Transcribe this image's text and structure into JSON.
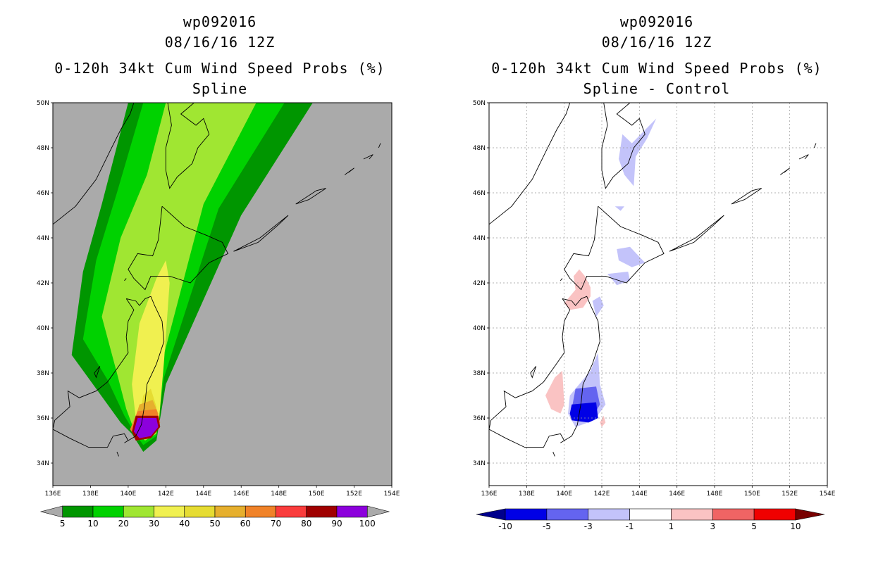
{
  "chart_data": [
    {
      "type": "heatmap",
      "panel": "left",
      "title_lines": [
        "wp092016",
        "08/16/16 12Z",
        "0-120h 34kt Cum Wind Speed Probs (%)",
        "Spline"
      ],
      "xlim": [
        136,
        154
      ],
      "ylim": [
        33,
        50
      ],
      "x_tick_labels": [
        "136E",
        "138E",
        "140E",
        "142E",
        "144E",
        "146E",
        "148E",
        "150E",
        "152E",
        "154E"
      ],
      "y_tick_labels": [
        "34N",
        "36N",
        "38N",
        "40N",
        "42N",
        "44N",
        "46N",
        "48N",
        "50N"
      ],
      "colorbar": {
        "levels": [
          "5",
          "10",
          "20",
          "30",
          "40",
          "50",
          "60",
          "70",
          "80",
          "90",
          "100"
        ],
        "colors": [
          "#009600",
          "#00d200",
          "#a0e632",
          "#f0f050",
          "#e6dc32",
          "#e6af2d",
          "#f08228",
          "#fa3c3c",
          "#a00000",
          "#8c00dc"
        ],
        "under_color": "#aaaaaa",
        "over_color": "#aaaaaa"
      },
      "background_color": "#aaaaaa",
      "bands": [
        {
          "level": "5-10",
          "color": "#009600",
          "polygon": [
            [
              137.0,
              38.8
            ],
            [
              137.6,
              42.5
            ],
            [
              138.6,
              45.5
            ],
            [
              140.0,
              50.0
            ],
            [
              149.8,
              50.0
            ],
            [
              146.0,
              45.0
            ],
            [
              142.0,
              37.5
            ],
            [
              141.5,
              35.0
            ],
            [
              140.8,
              34.5
            ],
            [
              140.2,
              35.3
            ],
            [
              139.6,
              35.8
            ],
            [
              138.3,
              37.3
            ]
          ]
        },
        {
          "level": "10-20",
          "color": "#00d200",
          "polygon": [
            [
              137.6,
              39.5
            ],
            [
              138.3,
              43.0
            ],
            [
              139.4,
              46.0
            ],
            [
              140.8,
              50.0
            ],
            [
              148.3,
              50.0
            ],
            [
              144.8,
              45.3
            ],
            [
              141.9,
              37.8
            ],
            [
              141.5,
              35.2
            ],
            [
              140.8,
              34.8
            ],
            [
              140.3,
              35.4
            ],
            [
              139.8,
              36.1
            ],
            [
              138.9,
              37.7
            ]
          ]
        },
        {
          "level": "20-30",
          "color": "#a0e632",
          "polygon": [
            [
              138.6,
              40.5
            ],
            [
              139.6,
              44.0
            ],
            [
              141.0,
              46.8
            ],
            [
              142.0,
              50.0
            ],
            [
              146.8,
              50.0
            ],
            [
              144.0,
              45.5
            ],
            [
              141.8,
              38.5
            ],
            [
              141.5,
              35.3
            ],
            [
              140.9,
              35.0
            ],
            [
              140.3,
              35.5
            ],
            [
              139.9,
              36.4
            ],
            [
              139.4,
              38.0
            ]
          ]
        },
        {
          "level": "30-40",
          "color": "#f0f050",
          "polygon": [
            [
              140.6,
              40.2
            ],
            [
              141.5,
              42.2
            ],
            [
              142.0,
              43.0
            ],
            [
              142.2,
              42.0
            ],
            [
              141.9,
              38.5
            ],
            [
              141.6,
              35.5
            ],
            [
              141.0,
              35.2
            ],
            [
              140.4,
              36.0
            ],
            [
              140.2,
              37.5
            ]
          ]
        },
        {
          "level": "40-50",
          "color": "#e6dc32",
          "polygon": [
            [
              140.8,
              37.0
            ],
            [
              141.2,
              37.3
            ],
            [
              141.5,
              36.5
            ],
            [
              141.4,
              35.6
            ],
            [
              140.9,
              35.4
            ],
            [
              140.6,
              36.0
            ]
          ]
        },
        {
          "level": "50-60",
          "color": "#e6af2d",
          "polygon": [
            [
              140.6,
              36.6
            ],
            [
              141.3,
              36.8
            ],
            [
              141.6,
              36.2
            ],
            [
              141.4,
              35.5
            ],
            [
              140.7,
              35.3
            ],
            [
              140.3,
              35.8
            ]
          ]
        },
        {
          "level": "60-70",
          "color": "#f08228",
          "polygon": [
            [
              140.5,
              36.3
            ],
            [
              141.5,
              36.4
            ],
            [
              141.7,
              35.8
            ],
            [
              141.2,
              35.2
            ],
            [
              140.5,
              35.0
            ],
            [
              140.1,
              35.5
            ]
          ]
        },
        {
          "level": "80-90",
          "color": "#a00000",
          "polygon": [
            [
              140.4,
              36.1
            ],
            [
              141.6,
              36.1
            ],
            [
              141.7,
              35.6
            ],
            [
              141.2,
              35.1
            ],
            [
              140.4,
              35.0
            ],
            [
              140.2,
              35.4
            ]
          ]
        },
        {
          "level": "90-100",
          "color": "#8c00dc",
          "polygon": [
            [
              140.5,
              36.0
            ],
            [
              141.5,
              36.0
            ],
            [
              141.6,
              35.6
            ],
            [
              141.2,
              35.2
            ],
            [
              140.6,
              35.1
            ],
            [
              140.3,
              35.4
            ]
          ]
        }
      ]
    },
    {
      "type": "heatmap",
      "panel": "right",
      "title_lines": [
        "wp092016",
        "08/16/16 12Z",
        "0-120h 34kt Cum Wind Speed Probs (%)",
        "Spline - Control"
      ],
      "xlim": [
        136,
        154
      ],
      "ylim": [
        33,
        50
      ],
      "x_tick_labels": [
        "136E",
        "138E",
        "140E",
        "142E",
        "144E",
        "146E",
        "148E",
        "150E",
        "152E",
        "154E"
      ],
      "y_tick_labels": [
        "34N",
        "36N",
        "38N",
        "40N",
        "42N",
        "44N",
        "46N",
        "48N",
        "50N"
      ],
      "colorbar": {
        "levels": [
          "-10",
          "-5",
          "-3",
          "-1",
          "1",
          "3",
          "5",
          "10"
        ],
        "colors": [
          "#0000e6",
          "#6464f0",
          "#c3c3fa",
          "#ffffff",
          "#fac3c3",
          "#f06464",
          "#f00000"
        ],
        "under_color": "#00008c",
        "over_color": "#780000"
      },
      "background_color": "#ffffff",
      "regions": [
        {
          "level": "-3 to -1",
          "color": "#c3c3fa",
          "polygon": [
            [
              143.1,
              48.6
            ],
            [
              143.6,
              48.2
            ],
            [
              144.9,
              49.3
            ],
            [
              144.4,
              48.4
            ],
            [
              143.8,
              47.6
            ],
            [
              143.7,
              46.3
            ],
            [
              143.2,
              46.8
            ],
            [
              142.9,
              47.5
            ]
          ]
        },
        {
          "level": "-3 to -1",
          "color": "#c3c3fa",
          "polygon": [
            [
              142.7,
              45.4
            ],
            [
              143.2,
              45.4
            ],
            [
              143.0,
              45.2
            ]
          ]
        },
        {
          "level": "-3 to -1",
          "color": "#c3c3fa",
          "polygon": [
            [
              142.8,
              43.5
            ],
            [
              143.5,
              43.6
            ],
            [
              144.3,
              42.9
            ],
            [
              143.6,
              42.7
            ],
            [
              142.9,
              43.0
            ]
          ]
        },
        {
          "level": "-3 to -1",
          "color": "#c3c3fa",
          "polygon": [
            [
              142.3,
              42.4
            ],
            [
              143.4,
              42.5
            ],
            [
              143.5,
              42.1
            ],
            [
              142.8,
              41.9
            ]
          ]
        },
        {
          "level": "-3 to -1",
          "color": "#c3c3fa",
          "polygon": [
            [
              141.5,
              41.2
            ],
            [
              141.9,
              41.4
            ],
            [
              142.1,
              41.0
            ],
            [
              141.7,
              40.5
            ]
          ]
        },
        {
          "level": "-3 to -1",
          "color": "#c3c3fa",
          "polygon": [
            [
              141.4,
              38.1
            ],
            [
              141.8,
              38.9
            ],
            [
              141.9,
              37.5
            ],
            [
              142.2,
              36.6
            ],
            [
              141.6,
              35.9
            ],
            [
              140.6,
              35.6
            ],
            [
              140.2,
              36.2
            ],
            [
              140.3,
              37.0
            ]
          ]
        },
        {
          "level": "-5 to -3",
          "color": "#6464f0",
          "polygon": [
            [
              140.6,
              37.3
            ],
            [
              141.7,
              37.4
            ],
            [
              141.9,
              36.6
            ],
            [
              141.5,
              36.0
            ],
            [
              140.6,
              35.9
            ],
            [
              140.4,
              36.4
            ]
          ]
        },
        {
          "level": "-10 to -5",
          "color": "#0000e6",
          "polygon": [
            [
              140.4,
              36.6
            ],
            [
              141.7,
              36.7
            ],
            [
              141.8,
              36.0
            ],
            [
              141.3,
              35.8
            ],
            [
              140.4,
              35.9
            ],
            [
              140.3,
              36.2
            ]
          ]
        },
        {
          "level": "1 to 3",
          "color": "#fac3c3",
          "polygon": [
            [
              140.5,
              42.3
            ],
            [
              140.8,
              42.6
            ],
            [
              141.1,
              42.3
            ],
            [
              141.4,
              41.8
            ],
            [
              141.4,
              41.4
            ],
            [
              141.0,
              40.9
            ],
            [
              140.3,
              40.8
            ],
            [
              140.0,
              41.1
            ],
            [
              140.6,
              41.7
            ]
          ]
        },
        {
          "level": "1 to 3",
          "color": "#fac3c3",
          "polygon": [
            [
              139.5,
              37.8
            ],
            [
              139.9,
              38.1
            ],
            [
              140.0,
              36.6
            ],
            [
              139.8,
              36.2
            ],
            [
              139.3,
              36.4
            ],
            [
              139.0,
              37.0
            ]
          ]
        },
        {
          "level": "1 to 3",
          "color": "#fac3c3",
          "polygon": [
            [
              141.9,
              35.8
            ],
            [
              142.1,
              36.1
            ],
            [
              142.2,
              35.8
            ],
            [
              142.0,
              35.6
            ]
          ]
        }
      ]
    }
  ]
}
